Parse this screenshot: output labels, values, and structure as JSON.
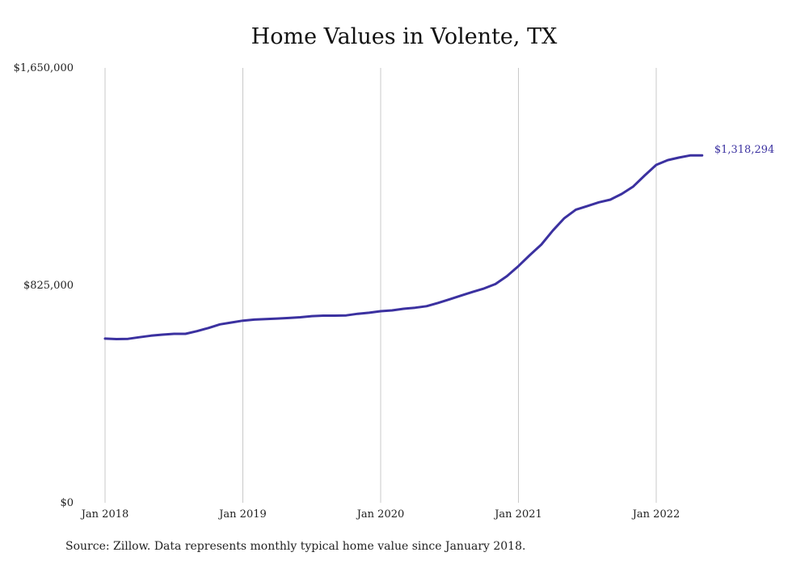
{
  "chart_data": {
    "type": "line",
    "title": "Home Values in Volente, TX",
    "xlabel": "",
    "ylabel": "",
    "ylim": [
      0,
      1650000
    ],
    "y_ticks": [
      {
        "value": 0,
        "label": "$0"
      },
      {
        "value": 825000,
        "label": "$825,000"
      },
      {
        "value": 1650000,
        "label": "$1,650,000"
      }
    ],
    "x_ticks": [
      "Jan 2018",
      "Jan 2019",
      "Jan 2020",
      "Jan 2021",
      "Jan 2022"
    ],
    "grid": "vertical",
    "line_color": "#3b31a0",
    "end_label": "$1,318,294",
    "series": [
      {
        "x": [
          "2018-01",
          "2018-02",
          "2018-03",
          "2018-04",
          "2018-05",
          "2018-06",
          "2018-07",
          "2018-08",
          "2018-09",
          "2018-10",
          "2018-11",
          "2018-12",
          "2019-01",
          "2019-02",
          "2019-03",
          "2019-04",
          "2019-05",
          "2019-06",
          "2019-07",
          "2019-08",
          "2019-09",
          "2019-10",
          "2019-11",
          "2019-12",
          "2020-01",
          "2020-02",
          "2020-03",
          "2020-04",
          "2020-05",
          "2020-06",
          "2020-07",
          "2020-08",
          "2020-09",
          "2020-10",
          "2020-11",
          "2020-12",
          "2021-01",
          "2021-02",
          "2021-03",
          "2021-04",
          "2021-05",
          "2021-06",
          "2021-07",
          "2021-08",
          "2021-09",
          "2021-10",
          "2021-11",
          "2021-12",
          "2022-01",
          "2022-02",
          "2022-03",
          "2022-04",
          "2022-05"
        ],
        "values": [
          623000,
          621000,
          622000,
          628000,
          634000,
          638000,
          641000,
          641000,
          651000,
          663000,
          677000,
          684000,
          691000,
          695000,
          697000,
          699000,
          701000,
          704000,
          708000,
          710000,
          710000,
          711000,
          717000,
          721000,
          727000,
          730000,
          736000,
          740000,
          746000,
          758000,
          772000,
          786000,
          800000,
          813000,
          830000,
          860000,
          898000,
          940000,
          980000,
          1033000,
          1080000,
          1112000,
          1126000,
          1140000,
          1150000,
          1172000,
          1200000,
          1242000,
          1282000,
          1300000,
          1310000,
          1318294,
          1318294
        ]
      }
    ]
  },
  "source_note": "Source: Zillow. Data represents monthly typical home value since January 2018."
}
